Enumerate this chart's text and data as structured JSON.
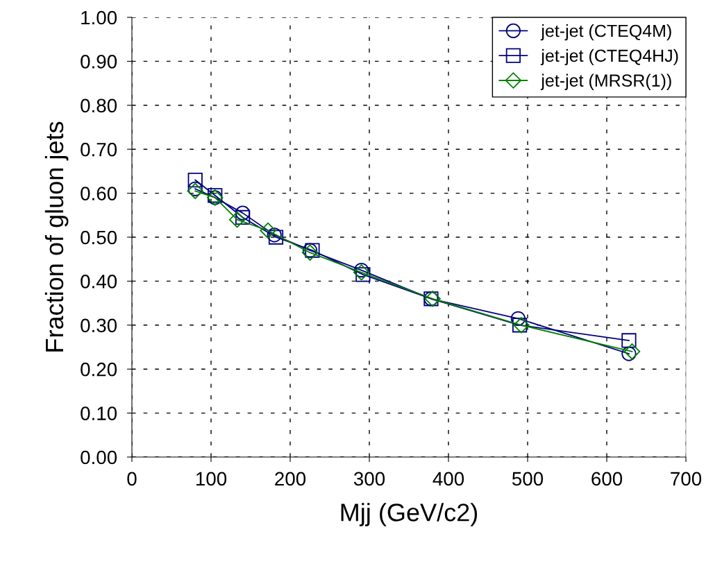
{
  "chart_data": {
    "type": "line",
    "xlabel": "Mjj (GeV/c2)",
    "ylabel": "Fraction of gluon jets",
    "xlim": [
      0,
      700
    ],
    "xticks": [
      0,
      100,
      200,
      300,
      400,
      500,
      600,
      700
    ],
    "ylim": [
      0,
      1
    ],
    "yticks": [
      {
        "value": 0,
        "label": "0.00"
      },
      {
        "value": 0.1,
        "label": "0.10"
      },
      {
        "value": 0.2,
        "label": "0.20"
      },
      {
        "value": 0.3,
        "label": "0.30"
      },
      {
        "value": 0.4,
        "label": "0.40"
      },
      {
        "value": 0.5,
        "label": "0.50"
      },
      {
        "value": 0.6,
        "label": "0.60"
      },
      {
        "value": 0.7,
        "label": "0.70"
      },
      {
        "value": 0.8,
        "label": "0.80"
      },
      {
        "value": 0.9,
        "label": "0.90"
      },
      {
        "value": 1,
        "label": "1.00"
      }
    ],
    "grid": true,
    "legend": "top right",
    "line_style": "solid",
    "series": [
      {
        "name": "jet-jet (CTEQ4M)",
        "color": "#000080",
        "marker": "circle",
        "x": [
          80,
          105,
          140,
          180,
          225,
          290,
          378,
          488,
          628
        ],
        "values": [
          0.61,
          0.59,
          0.555,
          0.505,
          0.47,
          0.425,
          0.36,
          0.315,
          0.235
        ]
      },
      {
        "name": "jet-jet (CTEQ4HJ)",
        "color": "#000080",
        "marker": "square",
        "x": [
          80,
          105,
          140,
          182,
          228,
          292,
          378,
          490,
          628
        ],
        "values": [
          0.63,
          0.595,
          0.545,
          0.5,
          0.47,
          0.415,
          0.36,
          0.3,
          0.265
        ]
      },
      {
        "name": "jet-jet (MRSR(1))",
        "color": "#008000",
        "marker": "diamond",
        "x": [
          80,
          105,
          133,
          172,
          225,
          290,
          380,
          492,
          632
        ],
        "values": [
          0.605,
          0.59,
          0.54,
          0.515,
          0.465,
          0.42,
          0.36,
          0.3,
          0.24
        ]
      }
    ]
  }
}
